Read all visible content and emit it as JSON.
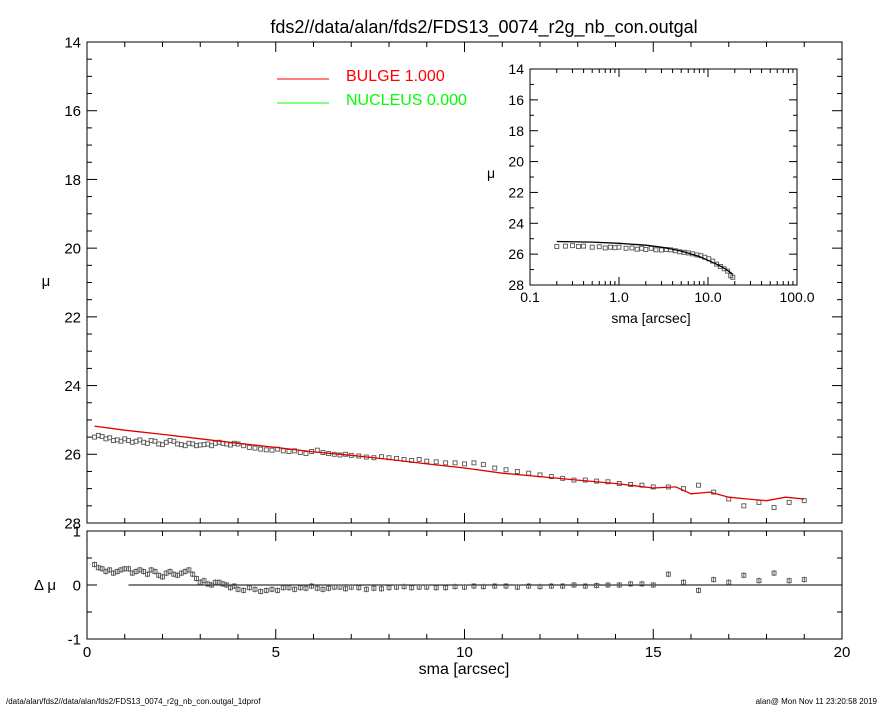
{
  "title": "fds2//data/alan/fds2/FDS13_0074_r2g_nb_con.outgal",
  "footer_left": "/data/alan/fds2//data/alan/fds2/FDS13_0074_r2g_nb_con.outgal_1dprof",
  "footer_right": "alan@  Mon Nov 11 23:20:58 2019",
  "chart_data": [
    {
      "id": "main",
      "type": "scatter",
      "xlabel": "",
      "ylabel": "μ",
      "xlim": [
        0,
        20
      ],
      "ylim": [
        28,
        14
      ],
      "y_inverted": true,
      "xticks": [
        0,
        5,
        10,
        15,
        20
      ],
      "yticks": [
        14,
        16,
        18,
        20,
        22,
        24,
        26,
        28
      ],
      "legend": [
        {
          "label": "BULGE  1.000",
          "color": "#ff0000"
        },
        {
          "label": "NUCLEUS  0.000",
          "color": "#00ff00"
        }
      ],
      "series": [
        {
          "kind": "data",
          "color": "#555555",
          "x": [
            0.2,
            0.3,
            0.4,
            0.5,
            0.6,
            0.7,
            0.8,
            0.9,
            1.0,
            1.1,
            1.2,
            1.3,
            1.4,
            1.5,
            1.6,
            1.7,
            1.8,
            1.9,
            2.0,
            2.1,
            2.2,
            2.3,
            2.4,
            2.5,
            2.6,
            2.7,
            2.8,
            2.9,
            3.0,
            3.1,
            3.2,
            3.3,
            3.4,
            3.5,
            3.6,
            3.7,
            3.8,
            3.9,
            4.0,
            4.15,
            4.3,
            4.45,
            4.6,
            4.75,
            4.9,
            5.05,
            5.2,
            5.35,
            5.5,
            5.65,
            5.8,
            5.95,
            6.1,
            6.25,
            6.4,
            6.55,
            6.7,
            6.85,
            7.0,
            7.2,
            7.4,
            7.6,
            7.8,
            8.0,
            8.2,
            8.4,
            8.6,
            8.8,
            9.0,
            9.25,
            9.5,
            9.75,
            10.0,
            10.25,
            10.5,
            10.8,
            11.1,
            11.4,
            11.7,
            12.0,
            12.3,
            12.6,
            12.9,
            13.2,
            13.5,
            13.8,
            14.1,
            14.4,
            14.7,
            15.0,
            15.4,
            15.8,
            16.2,
            16.6,
            17.0,
            17.4,
            17.8,
            18.2,
            18.6,
            19.0
          ],
          "y": [
            25.5,
            25.45,
            25.48,
            25.55,
            25.52,
            25.6,
            25.58,
            25.62,
            25.55,
            25.6,
            25.65,
            25.62,
            25.58,
            25.65,
            25.68,
            25.6,
            25.62,
            25.7,
            25.72,
            25.65,
            25.6,
            25.62,
            25.7,
            25.72,
            25.75,
            25.68,
            25.7,
            25.75,
            25.73,
            25.72,
            25.7,
            25.75,
            25.68,
            25.65,
            25.68,
            25.7,
            25.73,
            25.68,
            25.7,
            25.75,
            25.8,
            25.82,
            25.85,
            25.87,
            25.88,
            25.85,
            25.9,
            25.92,
            25.9,
            25.95,
            25.98,
            25.92,
            25.88,
            25.95,
            25.98,
            26.0,
            26.02,
            26.0,
            26.03,
            26.05,
            26.08,
            26.1,
            26.07,
            26.1,
            26.12,
            26.15,
            26.18,
            26.15,
            26.2,
            26.22,
            26.25,
            26.25,
            26.28,
            26.25,
            26.3,
            26.4,
            26.45,
            26.5,
            26.55,
            26.6,
            26.65,
            26.7,
            26.75,
            26.75,
            26.78,
            26.8,
            26.85,
            26.88,
            26.9,
            26.95,
            26.95,
            27.0,
            26.9,
            27.1,
            27.3,
            27.5,
            27.4,
            27.55,
            27.4,
            27.35
          ]
        },
        {
          "kind": "model",
          "color": "#e00000",
          "x": [
            0.2,
            1,
            2,
            3,
            4,
            5,
            6,
            7,
            8,
            9,
            10,
            11,
            12,
            13,
            14,
            15,
            15.6,
            16,
            16.5,
            17,
            17.5,
            18,
            18.5,
            19
          ],
          "y": [
            25.18,
            25.3,
            25.42,
            25.55,
            25.68,
            25.8,
            25.93,
            26.03,
            26.15,
            26.28,
            26.4,
            26.55,
            26.65,
            26.75,
            26.85,
            26.98,
            26.95,
            27.15,
            27.1,
            27.25,
            27.3,
            27.35,
            27.25,
            27.3
          ]
        }
      ]
    },
    {
      "id": "residual",
      "type": "scatter",
      "xlabel": "sma [arcsec]",
      "ylabel": "Δ μ",
      "xlim": [
        0,
        20
      ],
      "ylim": [
        -1,
        1
      ],
      "xticks": [
        0,
        5,
        10,
        15,
        20
      ],
      "yticks": [
        -1,
        0,
        1
      ],
      "zero_line_from": 1.1,
      "series": [
        {
          "kind": "residual",
          "color": "#555555",
          "x": [
            0.2,
            0.3,
            0.4,
            0.5,
            0.6,
            0.7,
            0.8,
            0.9,
            1.0,
            1.1,
            1.2,
            1.3,
            1.4,
            1.5,
            1.6,
            1.7,
            1.8,
            1.9,
            2.0,
            2.1,
            2.2,
            2.3,
            2.4,
            2.5,
            2.6,
            2.7,
            2.8,
            2.9,
            3.0,
            3.1,
            3.2,
            3.3,
            3.4,
            3.5,
            3.6,
            3.7,
            3.8,
            3.9,
            4.0,
            4.15,
            4.3,
            4.45,
            4.6,
            4.75,
            4.9,
            5.05,
            5.2,
            5.35,
            5.5,
            5.65,
            5.8,
            5.95,
            6.1,
            6.25,
            6.4,
            6.55,
            6.7,
            6.85,
            7.0,
            7.2,
            7.4,
            7.6,
            7.8,
            8.0,
            8.2,
            8.4,
            8.6,
            8.8,
            9.0,
            9.25,
            9.5,
            9.75,
            10.0,
            10.25,
            10.5,
            10.8,
            11.1,
            11.4,
            11.7,
            12.0,
            12.3,
            12.6,
            12.9,
            13.2,
            13.5,
            13.8,
            14.1,
            14.4,
            14.7,
            15.0,
            15.4,
            15.8,
            16.2,
            16.6,
            17.0,
            17.4,
            17.8,
            18.2,
            18.6,
            19.0
          ],
          "y": [
            0.38,
            0.32,
            0.3,
            0.25,
            0.28,
            0.22,
            0.25,
            0.28,
            0.3,
            0.3,
            0.22,
            0.25,
            0.28,
            0.25,
            0.2,
            0.28,
            0.25,
            0.18,
            0.15,
            0.22,
            0.25,
            0.2,
            0.18,
            0.22,
            0.25,
            0.28,
            0.2,
            0.12,
            0.05,
            0.08,
            0.02,
            0.0,
            0.05,
            0.05,
            0.02,
            0.0,
            -0.05,
            -0.02,
            -0.08,
            -0.1,
            -0.05,
            -0.08,
            -0.12,
            -0.1,
            -0.08,
            -0.1,
            -0.05,
            -0.05,
            -0.08,
            -0.05,
            -0.06,
            -0.02,
            -0.06,
            -0.08,
            -0.06,
            -0.04,
            -0.04,
            -0.07,
            -0.04,
            -0.05,
            -0.08,
            -0.06,
            -0.07,
            -0.05,
            -0.04,
            -0.03,
            -0.05,
            -0.04,
            -0.04,
            -0.05,
            -0.05,
            -0.03,
            -0.04,
            -0.02,
            -0.03,
            -0.02,
            -0.02,
            -0.04,
            -0.02,
            -0.03,
            -0.02,
            -0.02,
            0.0,
            -0.02,
            -0.01,
            0.0,
            0.0,
            0.02,
            0.02,
            0.0,
            0.2,
            0.05,
            -0.1,
            0.1,
            0.05,
            0.18,
            0.08,
            0.22,
            0.08,
            0.1
          ]
        }
      ]
    },
    {
      "id": "inset",
      "type": "scatter",
      "xlabel": "sma [arcsec]",
      "ylabel": "μ",
      "xscale": "log",
      "xlim": [
        0.1,
        100
      ],
      "ylim": [
        28,
        14
      ],
      "y_inverted": true,
      "xtick_labels": [
        "0.1",
        "1.0",
        "10.0",
        "100.0"
      ],
      "xticks": [
        0.1,
        1,
        10,
        100
      ],
      "yticks": [
        14,
        16,
        18,
        20,
        22,
        24,
        26,
        28
      ],
      "series": [
        {
          "kind": "data",
          "color": "#555555",
          "x": [
            0.2,
            0.25,
            0.3,
            0.35,
            0.4,
            0.5,
            0.6,
            0.7,
            0.8,
            0.9,
            1.0,
            1.2,
            1.4,
            1.6,
            1.8,
            2.0,
            2.3,
            2.6,
            3.0,
            3.4,
            3.8,
            4.3,
            4.8,
            5.4,
            6.0,
            6.7,
            7.5,
            8.3,
            9.2,
            10.2,
            11.3,
            12.5,
            13.8,
            15.2,
            16.6,
            18.0,
            19.0
          ],
          "y": [
            25.5,
            25.48,
            25.45,
            25.5,
            25.48,
            25.55,
            25.52,
            25.6,
            25.55,
            25.58,
            25.55,
            25.62,
            25.6,
            25.68,
            25.62,
            25.7,
            25.62,
            25.72,
            25.73,
            25.7,
            25.72,
            25.78,
            25.85,
            25.88,
            25.92,
            25.98,
            26.05,
            26.1,
            26.2,
            26.3,
            26.45,
            26.65,
            26.8,
            26.95,
            27.1,
            27.4,
            27.5
          ]
        },
        {
          "kind": "model",
          "color": "#000000",
          "x": [
            0.2,
            0.5,
            1.0,
            2.0,
            3.0,
            4.0,
            5.0,
            6.0,
            8.0,
            10.0,
            12.0,
            14.0,
            16.0,
            18.0,
            19.0
          ],
          "y": [
            25.18,
            25.22,
            25.3,
            25.42,
            25.55,
            25.68,
            25.8,
            25.93,
            26.15,
            26.4,
            26.6,
            26.8,
            27.0,
            27.2,
            27.3
          ]
        }
      ]
    }
  ]
}
